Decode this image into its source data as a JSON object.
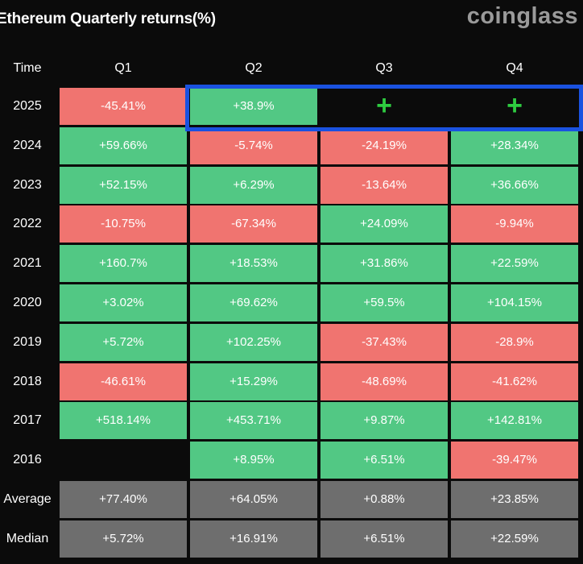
{
  "header": {
    "title": "Ethereum Quarterly returns(%)",
    "brand": "coinglass"
  },
  "colors": {
    "positive": "#52c884",
    "negative": "#f07470",
    "stat": "#6e6e6e",
    "highlight_border": "#1a52e0",
    "plus": "#2ecc40"
  },
  "chart_data": {
    "type": "table",
    "title": "Ethereum Quarterly returns(%)",
    "columns": [
      "Time",
      "Q1",
      "Q2",
      "Q3",
      "Q4"
    ],
    "rows": [
      {
        "label": "2025",
        "values": [
          "-45.41%",
          "+38.9%",
          "+",
          "+"
        ],
        "signs": [
          "neg",
          "pos",
          "plus",
          "plus"
        ],
        "highlighted": [
          false,
          true,
          true,
          true
        ]
      },
      {
        "label": "2024",
        "values": [
          "+59.66%",
          "-5.74%",
          "-24.19%",
          "+28.34%"
        ],
        "signs": [
          "pos",
          "neg",
          "neg",
          "pos"
        ]
      },
      {
        "label": "2023",
        "values": [
          "+52.15%",
          "+6.29%",
          "-13.64%",
          "+36.66%"
        ],
        "signs": [
          "pos",
          "pos",
          "neg",
          "pos"
        ]
      },
      {
        "label": "2022",
        "values": [
          "-10.75%",
          "-67.34%",
          "+24.09%",
          "-9.94%"
        ],
        "signs": [
          "neg",
          "neg",
          "pos",
          "neg"
        ]
      },
      {
        "label": "2021",
        "values": [
          "+160.7%",
          "+18.53%",
          "+31.86%",
          "+22.59%"
        ],
        "signs": [
          "pos",
          "pos",
          "pos",
          "pos"
        ]
      },
      {
        "label": "2020",
        "values": [
          "+3.02%",
          "+69.62%",
          "+59.5%",
          "+104.15%"
        ],
        "signs": [
          "pos",
          "pos",
          "pos",
          "pos"
        ]
      },
      {
        "label": "2019",
        "values": [
          "+5.72%",
          "+102.25%",
          "-37.43%",
          "-28.9%"
        ],
        "signs": [
          "pos",
          "pos",
          "neg",
          "neg"
        ]
      },
      {
        "label": "2018",
        "values": [
          "-46.61%",
          "+15.29%",
          "-48.69%",
          "-41.62%"
        ],
        "signs": [
          "neg",
          "pos",
          "neg",
          "neg"
        ]
      },
      {
        "label": "2017",
        "values": [
          "+518.14%",
          "+453.71%",
          "+9.87%",
          "+142.81%"
        ],
        "signs": [
          "pos",
          "pos",
          "pos",
          "pos"
        ]
      },
      {
        "label": "2016",
        "values": [
          "",
          "+8.95%",
          "+6.51%",
          "-39.47%"
        ],
        "signs": [
          "empty",
          "pos",
          "pos",
          "neg"
        ]
      },
      {
        "label": "Average",
        "values": [
          "+77.40%",
          "+64.05%",
          "+0.88%",
          "+23.85%"
        ],
        "signs": [
          "stat",
          "stat",
          "stat",
          "stat"
        ]
      },
      {
        "label": "Median",
        "values": [
          "+5.72%",
          "+16.91%",
          "+6.51%",
          "+22.59%"
        ],
        "signs": [
          "stat",
          "stat",
          "stat",
          "stat"
        ]
      }
    ]
  }
}
